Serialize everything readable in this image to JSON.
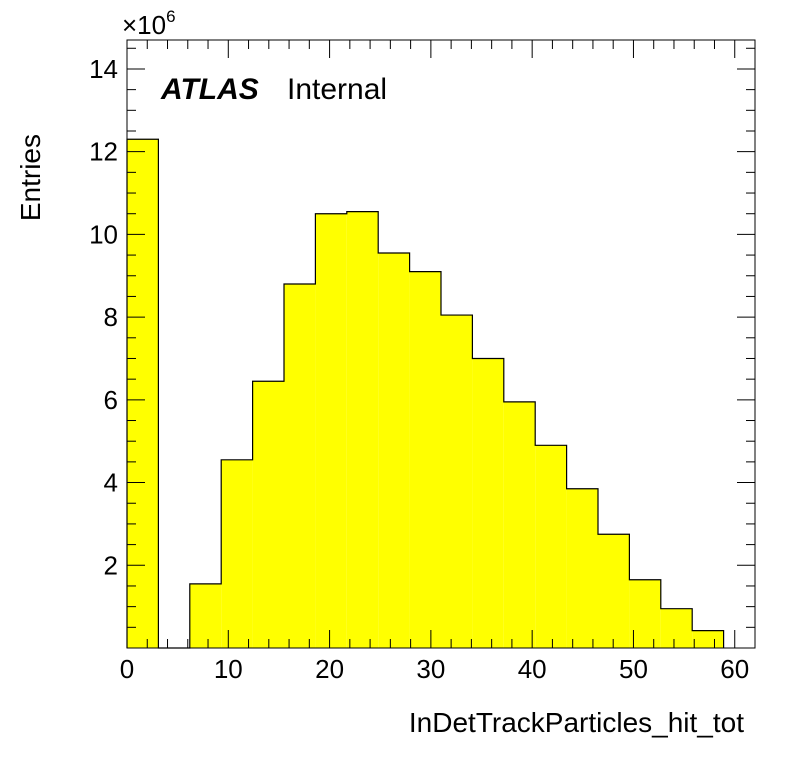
{
  "chart_data": {
    "type": "bar",
    "histogram": true,
    "bin_edges": [
      0,
      3.1,
      6.2,
      9.3,
      12.4,
      15.5,
      18.6,
      21.7,
      24.8,
      27.9,
      31.0,
      34.1,
      37.2,
      40.3,
      43.4,
      46.5,
      49.6,
      52.7,
      55.8,
      58.9
    ],
    "values": [
      12.3,
      0,
      1.55,
      4.55,
      6.45,
      8.8,
      10.5,
      10.55,
      9.55,
      9.1,
      8.05,
      7.0,
      5.95,
      4.9,
      3.85,
      2.75,
      1.65,
      0.95,
      0.42
    ],
    "xlabel": "InDetTrackParticles_hit_tot",
    "ylabel": "Entries",
    "y_multiplier": "×10",
    "y_multiplier_exponent": "6",
    "xlim": [
      0,
      62
    ],
    "ylim": [
      0,
      14.7
    ],
    "x_ticks": [
      "0",
      "10",
      "20",
      "30",
      "40",
      "50",
      "60"
    ],
    "y_ticks": [
      "2",
      "4",
      "6",
      "8",
      "10",
      "12",
      "14"
    ],
    "fill_color": "#ffff00",
    "line_color": "#000000",
    "grid": false,
    "label_main": "ATLAS",
    "label_sub": "Internal"
  }
}
